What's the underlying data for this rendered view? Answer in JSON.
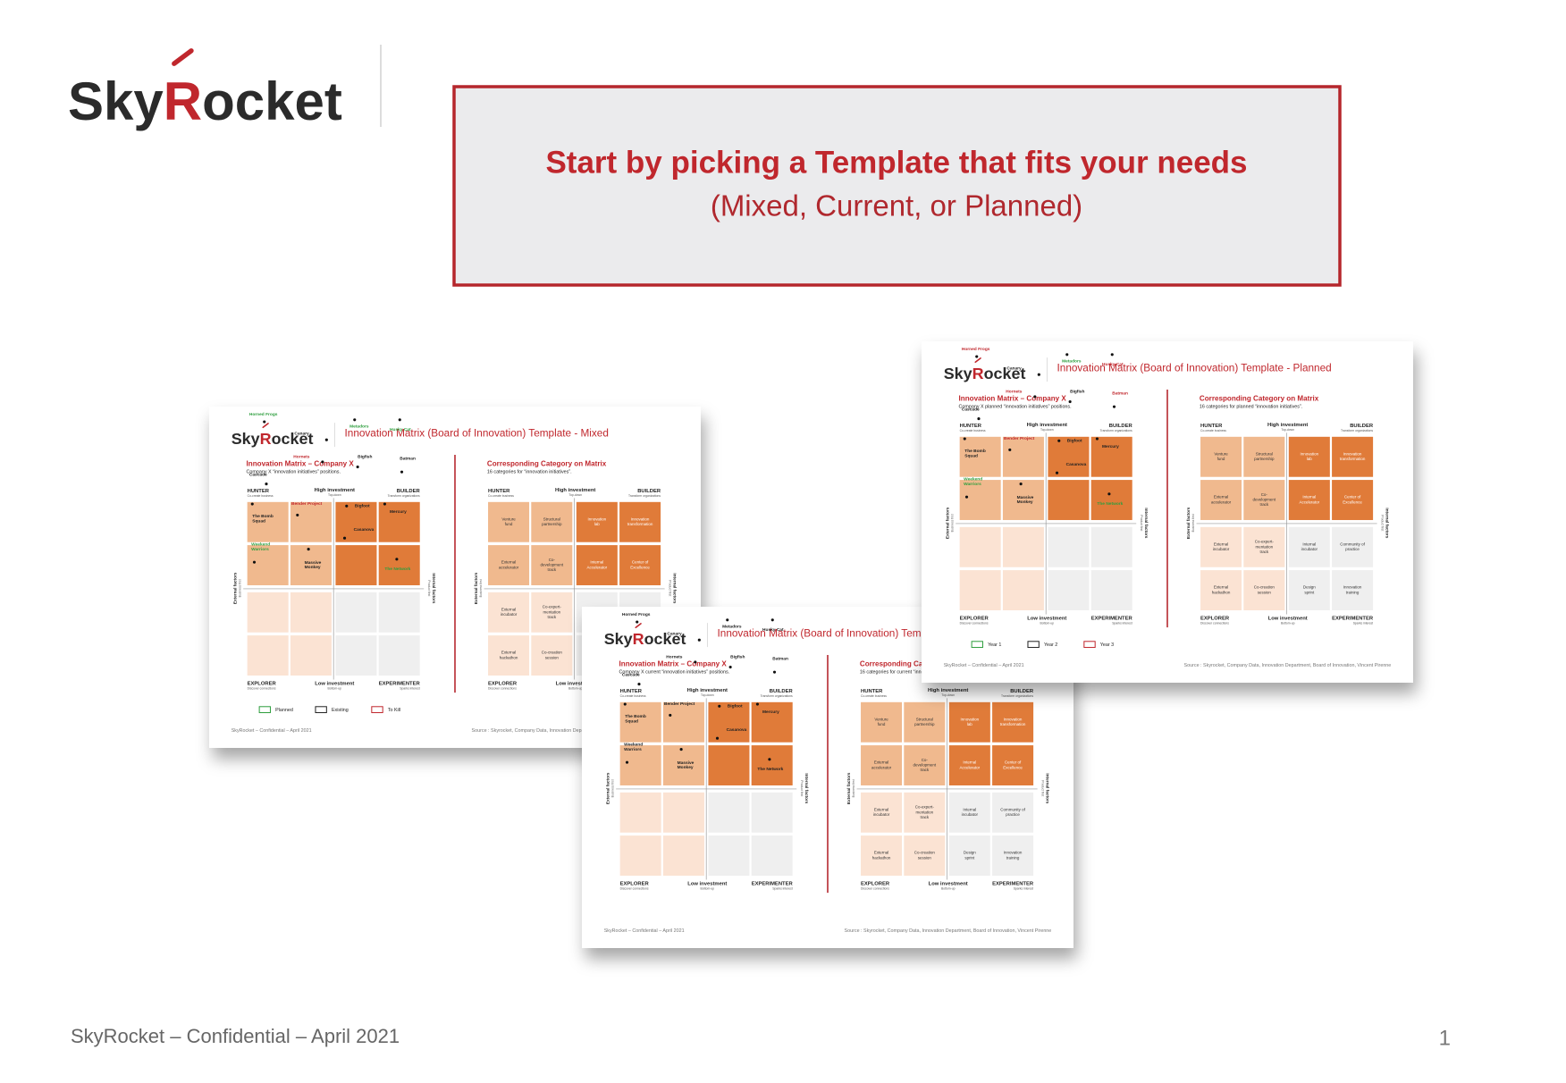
{
  "logo": {
    "sky": "Sky",
    "r": "R",
    "ocket": "ocket"
  },
  "title": "Start by picking a Template that fits your needs",
  "subtitle": "(Mixed, Current, or Planned)",
  "footer": "SkyRocket – Confidential – April 2021",
  "page_number": "1",
  "matrix": {
    "left_heading": "Innovation Matrix – Company X",
    "right_heading": "Corresponding Category on Matrix",
    "top_left": {
      "label": "HUNTER",
      "sub": "Co-create business"
    },
    "top_center": {
      "label": "High investment",
      "sub": "Top-down"
    },
    "top_right": {
      "label": "BUILDER",
      "sub": "Transform organizations"
    },
    "bottom_left": {
      "label": "EXPLORER",
      "sub": "Discover connections"
    },
    "bottom_center": {
      "label": "Low investment",
      "sub": "Bottom-up"
    },
    "bottom_right": {
      "label": "EXPERIMENTER",
      "sub": "Sparks interest"
    },
    "left_side": {
      "label": "External factors",
      "sub": "Business first"
    },
    "right_side": {
      "label": "Internal factors",
      "sub": "Product first"
    },
    "initiatives": [
      [
        "Horned Frogs"
      ],
      [
        "Canary"
      ],
      [
        "Metadors"
      ],
      [
        "Husky Cat"
      ],
      [
        "Hornets"
      ],
      [
        "Bigfish"
      ],
      [
        "Batman"
      ],
      [
        "Cascade"
      ],
      [
        "Bender Project"
      ],
      [
        "Bigfoot"
      ],
      [
        "Mercury"
      ],
      [
        "The Bomb",
        "Squad"
      ],
      [
        "Casanova"
      ],
      [
        "Weekend",
        "Warriors"
      ],
      [
        "Massive",
        "Monkey"
      ],
      [
        "The Network"
      ]
    ],
    "categories": [
      [
        "Venture",
        "fund"
      ],
      [
        "Structural",
        "partnership"
      ],
      [
        "Innovation",
        "lab"
      ],
      [
        "Innovation",
        "transformation"
      ],
      [
        "External",
        "accelerator"
      ],
      [
        "Co-",
        "development",
        "track"
      ],
      [
        "Internal",
        "Accelerator"
      ],
      [
        "Center of",
        "Excellence"
      ],
      [
        "External",
        "incubator"
      ],
      [
        "Co-expert-",
        "mentation",
        "track"
      ],
      [
        "Internal",
        "incubator"
      ],
      [
        "Community of",
        "practice"
      ],
      [
        "External",
        "hackathon"
      ],
      [
        "Co-creation",
        "session"
      ],
      [
        "Design",
        "sprint"
      ],
      [
        "Innovation",
        "training"
      ]
    ],
    "source": "Source : Skyrocket, Company Data, Innovation Department, Board of Innovation, Vincent Pirenne"
  },
  "slides": [
    {
      "title": "Innovation Matrix (Board of Innovation) Template - Mixed",
      "left_subtitle": "Company X “innovation initiatives” positions.",
      "right_subtitle": "16 categories for “innovation initiatives”.",
      "label_colors": [
        "#2e9e3e",
        "#222",
        "#2e9e3e",
        "#2e9e3e",
        "#c0272d",
        "#222",
        "#222",
        "#222",
        "#c0272d",
        "#222",
        "#222",
        "#222",
        "#222",
        "#2e9e3e",
        "#222",
        "#2e9e3e"
      ],
      "legend": [
        {
          "name": "Planned",
          "color": "#2e9e3e"
        },
        {
          "name": "Existing",
          "color": "#222"
        },
        {
          "name": "To Kill",
          "color": "#c0272d"
        }
      ]
    },
    {
      "title": "Innovation Matrix (Board of Innovation) Template - Current",
      "left_subtitle": "Company X current “innovation initiatives” positions.",
      "right_subtitle": "16 categories for current “innovation initiatives”.",
      "label_colors": [
        "#222",
        "#222",
        "#222",
        "#222",
        "#222",
        "#222",
        "#222",
        "#222",
        "#222",
        "#222",
        "#222",
        "#222",
        "#222",
        "#222",
        "#222",
        "#222"
      ],
      "legend": []
    },
    {
      "title": "Innovation Matrix (Board of Innovation) Template - Planned",
      "left_subtitle": "Company X planned “innovation initiatives” positions.",
      "right_subtitle": "16 categories for planned “innovation initiatives”.",
      "label_colors": [
        "#c0272d",
        "#222",
        "#2e9e3e",
        "#c0272d",
        "#c0272d",
        "#222",
        "#c0272d",
        "#222",
        "#c0272d",
        "#222",
        "#222",
        "#222",
        "#222",
        "#2e9e3e",
        "#222",
        "#2e9e3e"
      ],
      "legend": [
        {
          "name": "Year 1",
          "color": "#2e9e3e"
        },
        {
          "name": "Year 2",
          "color": "#222"
        },
        {
          "name": "Year 3",
          "color": "#c0272d"
        }
      ]
    }
  ]
}
